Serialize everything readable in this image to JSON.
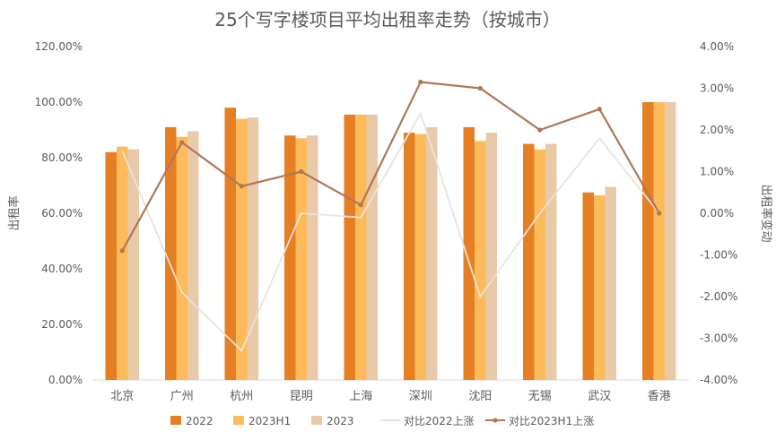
{
  "chart_data": {
    "type": "bar",
    "title": "25个写字楼项目平均出租率走势（按城市）",
    "xlabel": "",
    "ylabel": "出租率",
    "y2label": "出租率变动",
    "categories": [
      "北京",
      "广州",
      "杭州",
      "昆明",
      "上海",
      "深圳",
      "沈阳",
      "无锡",
      "武汉",
      "香港"
    ],
    "ylim": [
      0,
      120
    ],
    "y_ticks": [
      "0.00%",
      "20.00%",
      "40.00%",
      "60.00%",
      "80.00%",
      "100.00%",
      "120.00%"
    ],
    "y2lim": [
      -4,
      4
    ],
    "y2_ticks": [
      "-4.00%",
      "-3.00%",
      "-2.00%",
      "-1.00%",
      "0.00%",
      "1.00%",
      "2.00%",
      "3.00%",
      "4.00%"
    ],
    "series": [
      {
        "name": "2022",
        "kind": "bar",
        "axis": "left",
        "color": "#E67E22",
        "values": [
          82.0,
          91.0,
          98.0,
          88.0,
          95.5,
          89.0,
          91.0,
          85.0,
          67.5,
          100.0
        ]
      },
      {
        "name": "2023H1",
        "kind": "bar",
        "axis": "left",
        "color": "#FDBA5A",
        "values": [
          84.0,
          87.5,
          94.0,
          87.0,
          95.5,
          88.5,
          86.0,
          83.0,
          66.5,
          100.0
        ]
      },
      {
        "name": "2023",
        "kind": "bar",
        "axis": "left",
        "color": "#E8C9A8",
        "values": [
          83.0,
          89.5,
          94.5,
          88.0,
          95.5,
          91.0,
          89.0,
          85.0,
          69.5,
          100.0
        ]
      },
      {
        "name": "对比2022上涨",
        "kind": "line",
        "axis": "right",
        "color": "#E8E4DC",
        "values": [
          1.5,
          -1.9,
          -3.3,
          0.0,
          -0.1,
          2.4,
          -2.0,
          0.0,
          1.8,
          0.0
        ]
      },
      {
        "name": "对比2023H1上涨",
        "kind": "line",
        "axis": "right",
        "color": "#B07656",
        "values": [
          -0.9,
          1.7,
          0.65,
          1.0,
          0.2,
          3.15,
          3.0,
          2.0,
          2.5,
          0.0
        ]
      }
    ],
    "grid": false,
    "legend": "bottom"
  }
}
